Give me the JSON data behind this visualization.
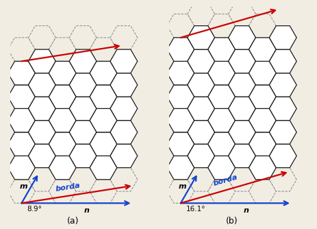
{
  "fig_width": 4.63,
  "fig_height": 3.34,
  "dpi": 100,
  "bg_color": "#f2ede3",
  "hex_edge_color": "#1a1a1a",
  "hex_face_color": "#ffffff",
  "hex_lw": 0.9,
  "dashed_edge_color": "#888888",
  "dashed_lw": 0.7,
  "arrow_red": "#cc0000",
  "arrow_blue": "#1144cc",
  "label_a": "(a)",
  "label_b": "(b)",
  "angle_label_a": "8.9°",
  "angle_label_b": "16.1°",
  "n_label": "n",
  "m_label": "m",
  "borda_label": "borda"
}
